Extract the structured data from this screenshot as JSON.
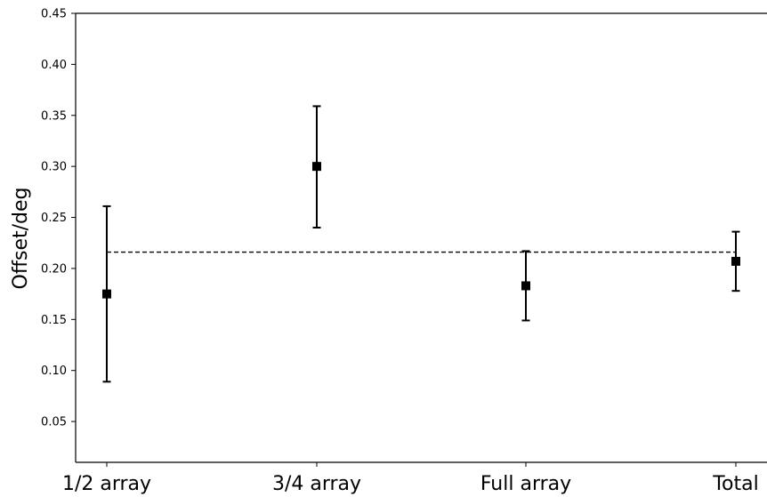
{
  "chart_data": {
    "type": "scatter",
    "title": "",
    "xlabel": "",
    "ylabel": "Offset/deg",
    "ylim": [
      0.01,
      0.45
    ],
    "yticks": [
      "0.05",
      "0.10",
      "0.15",
      "0.20",
      "0.25",
      "0.30",
      "0.35",
      "0.40",
      "0.45"
    ],
    "categories": [
      "1/2 array",
      "3/4 array",
      "Full array",
      "Total"
    ],
    "values": [
      0.175,
      0.3,
      0.183,
      0.207
    ],
    "error_low": [
      0.089,
      0.24,
      0.149,
      0.178
    ],
    "error_high": [
      0.261,
      0.359,
      0.217,
      0.236
    ],
    "reference_line": {
      "value": 0.216,
      "style": "dashed"
    },
    "grid": false,
    "marker": "square",
    "color": "#000000"
  }
}
